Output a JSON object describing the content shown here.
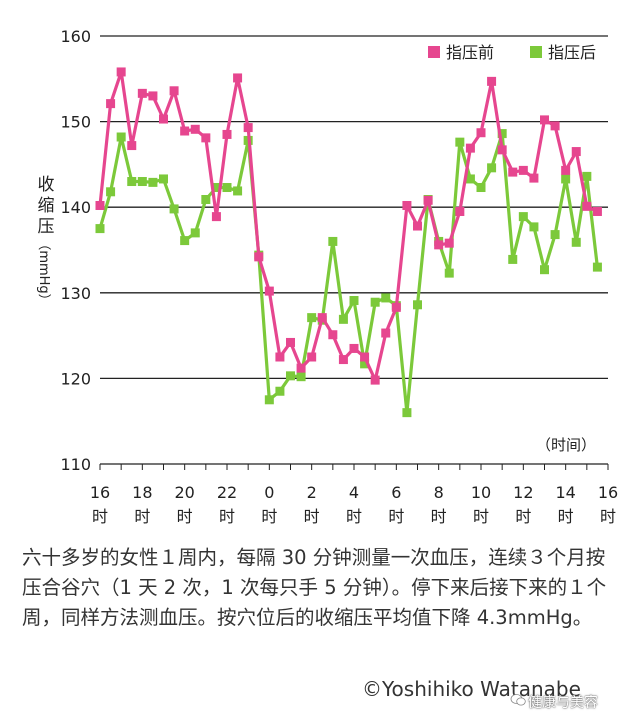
{
  "colors": {
    "before": "#e6468f",
    "after": "#7cc93a",
    "grid": "#222222"
  },
  "chart_data": {
    "type": "line",
    "ylabel": "收缩压",
    "yunit": "（mmHg）",
    "xunit": "（时间）",
    "ylim": [
      110,
      160
    ],
    "yticks": [
      110,
      120,
      130,
      140,
      150,
      160
    ],
    "grid": true,
    "legend_position": "top-right",
    "xticks": [
      {
        "hour": 16,
        "l1": "16",
        "l2": "时"
      },
      {
        "hour": 18,
        "l1": "18",
        "l2": "时"
      },
      {
        "hour": 20,
        "l1": "20",
        "l2": "时"
      },
      {
        "hour": 22,
        "l1": "22",
        "l2": "时"
      },
      {
        "hour": 24,
        "l1": "0",
        "l2": "时"
      },
      {
        "hour": 26,
        "l1": "2",
        "l2": "时"
      },
      {
        "hour": 28,
        "l1": "4",
        "l2": "时"
      },
      {
        "hour": 30,
        "l1": "6",
        "l2": "时"
      },
      {
        "hour": 32,
        "l1": "8",
        "l2": "时"
      },
      {
        "hour": 34,
        "l1": "10",
        "l2": "时"
      },
      {
        "hour": 36,
        "l1": "12",
        "l2": "时"
      },
      {
        "hour": 38,
        "l1": "14",
        "l2": "时"
      },
      {
        "hour": 40,
        "l1": "16",
        "l2": "时"
      }
    ],
    "x": [
      16,
      16.5,
      17,
      17.5,
      18,
      18.5,
      19,
      19.5,
      20,
      20.5,
      21,
      21.5,
      22,
      22.5,
      23,
      23.5,
      24,
      24.5,
      25,
      25.5,
      26,
      26.5,
      27,
      27.5,
      28,
      28.5,
      29,
      29.5,
      30,
      30.5,
      31,
      31.5,
      32,
      32.5,
      33,
      33.5,
      34,
      34.5,
      35,
      35.5,
      36,
      36.5,
      37,
      37.5,
      38,
      38.5,
      39,
      39.5
    ],
    "series": [
      {
        "name": "指压前",
        "values": [
          140.2,
          152.1,
          155.8,
          147.2,
          153.3,
          153.0,
          150.3,
          153.6,
          148.9,
          149.1,
          148.1,
          138.9,
          148.5,
          155.1,
          149.3,
          134.2,
          130.2,
          122.5,
          124.2,
          121.2,
          122.5,
          127.1,
          125.1,
          122.2,
          123.5,
          122.5,
          119.8,
          125.3,
          128.3,
          140.2,
          137.8,
          140.8,
          135.6,
          135.8,
          139.5,
          146.9,
          148.7,
          154.7,
          146.7,
          144.1,
          144.3,
          143.4,
          150.2,
          149.5,
          144.3,
          146.5,
          140.1,
          139.5
        ]
      },
      {
        "name": "指压后",
        "values": [
          137.5,
          141.8,
          148.2,
          143.0,
          143.0,
          142.9,
          143.3,
          139.8,
          136.1,
          137.0,
          140.9,
          142.3,
          142.3,
          141.9,
          147.8,
          134.4,
          117.5,
          118.5,
          120.3,
          120.2,
          127.1,
          126.8,
          136.0,
          126.9,
          129.1,
          121.7,
          128.9,
          129.4,
          128.5,
          116.0,
          128.6,
          140.9,
          136.0,
          132.3,
          147.6,
          143.3,
          142.3,
          144.6,
          148.6,
          133.9,
          138.9,
          137.7,
          132.7,
          136.8,
          143.3,
          135.9,
          143.6,
          133.0
        ]
      }
    ]
  },
  "caption": "六十多岁的女性１周内，每隔 30 分钟测量一次血压，连续３个月按压合谷穴（1 天 2 次，1 次每只手 5 分钟）。停下来后接下来的１个周，同样方法测血压。按穴位后的收缩压平均值下降 4.3mmHg。",
  "copyright": "©Yoshihiko Watanabe",
  "watermark": "健康与美容"
}
